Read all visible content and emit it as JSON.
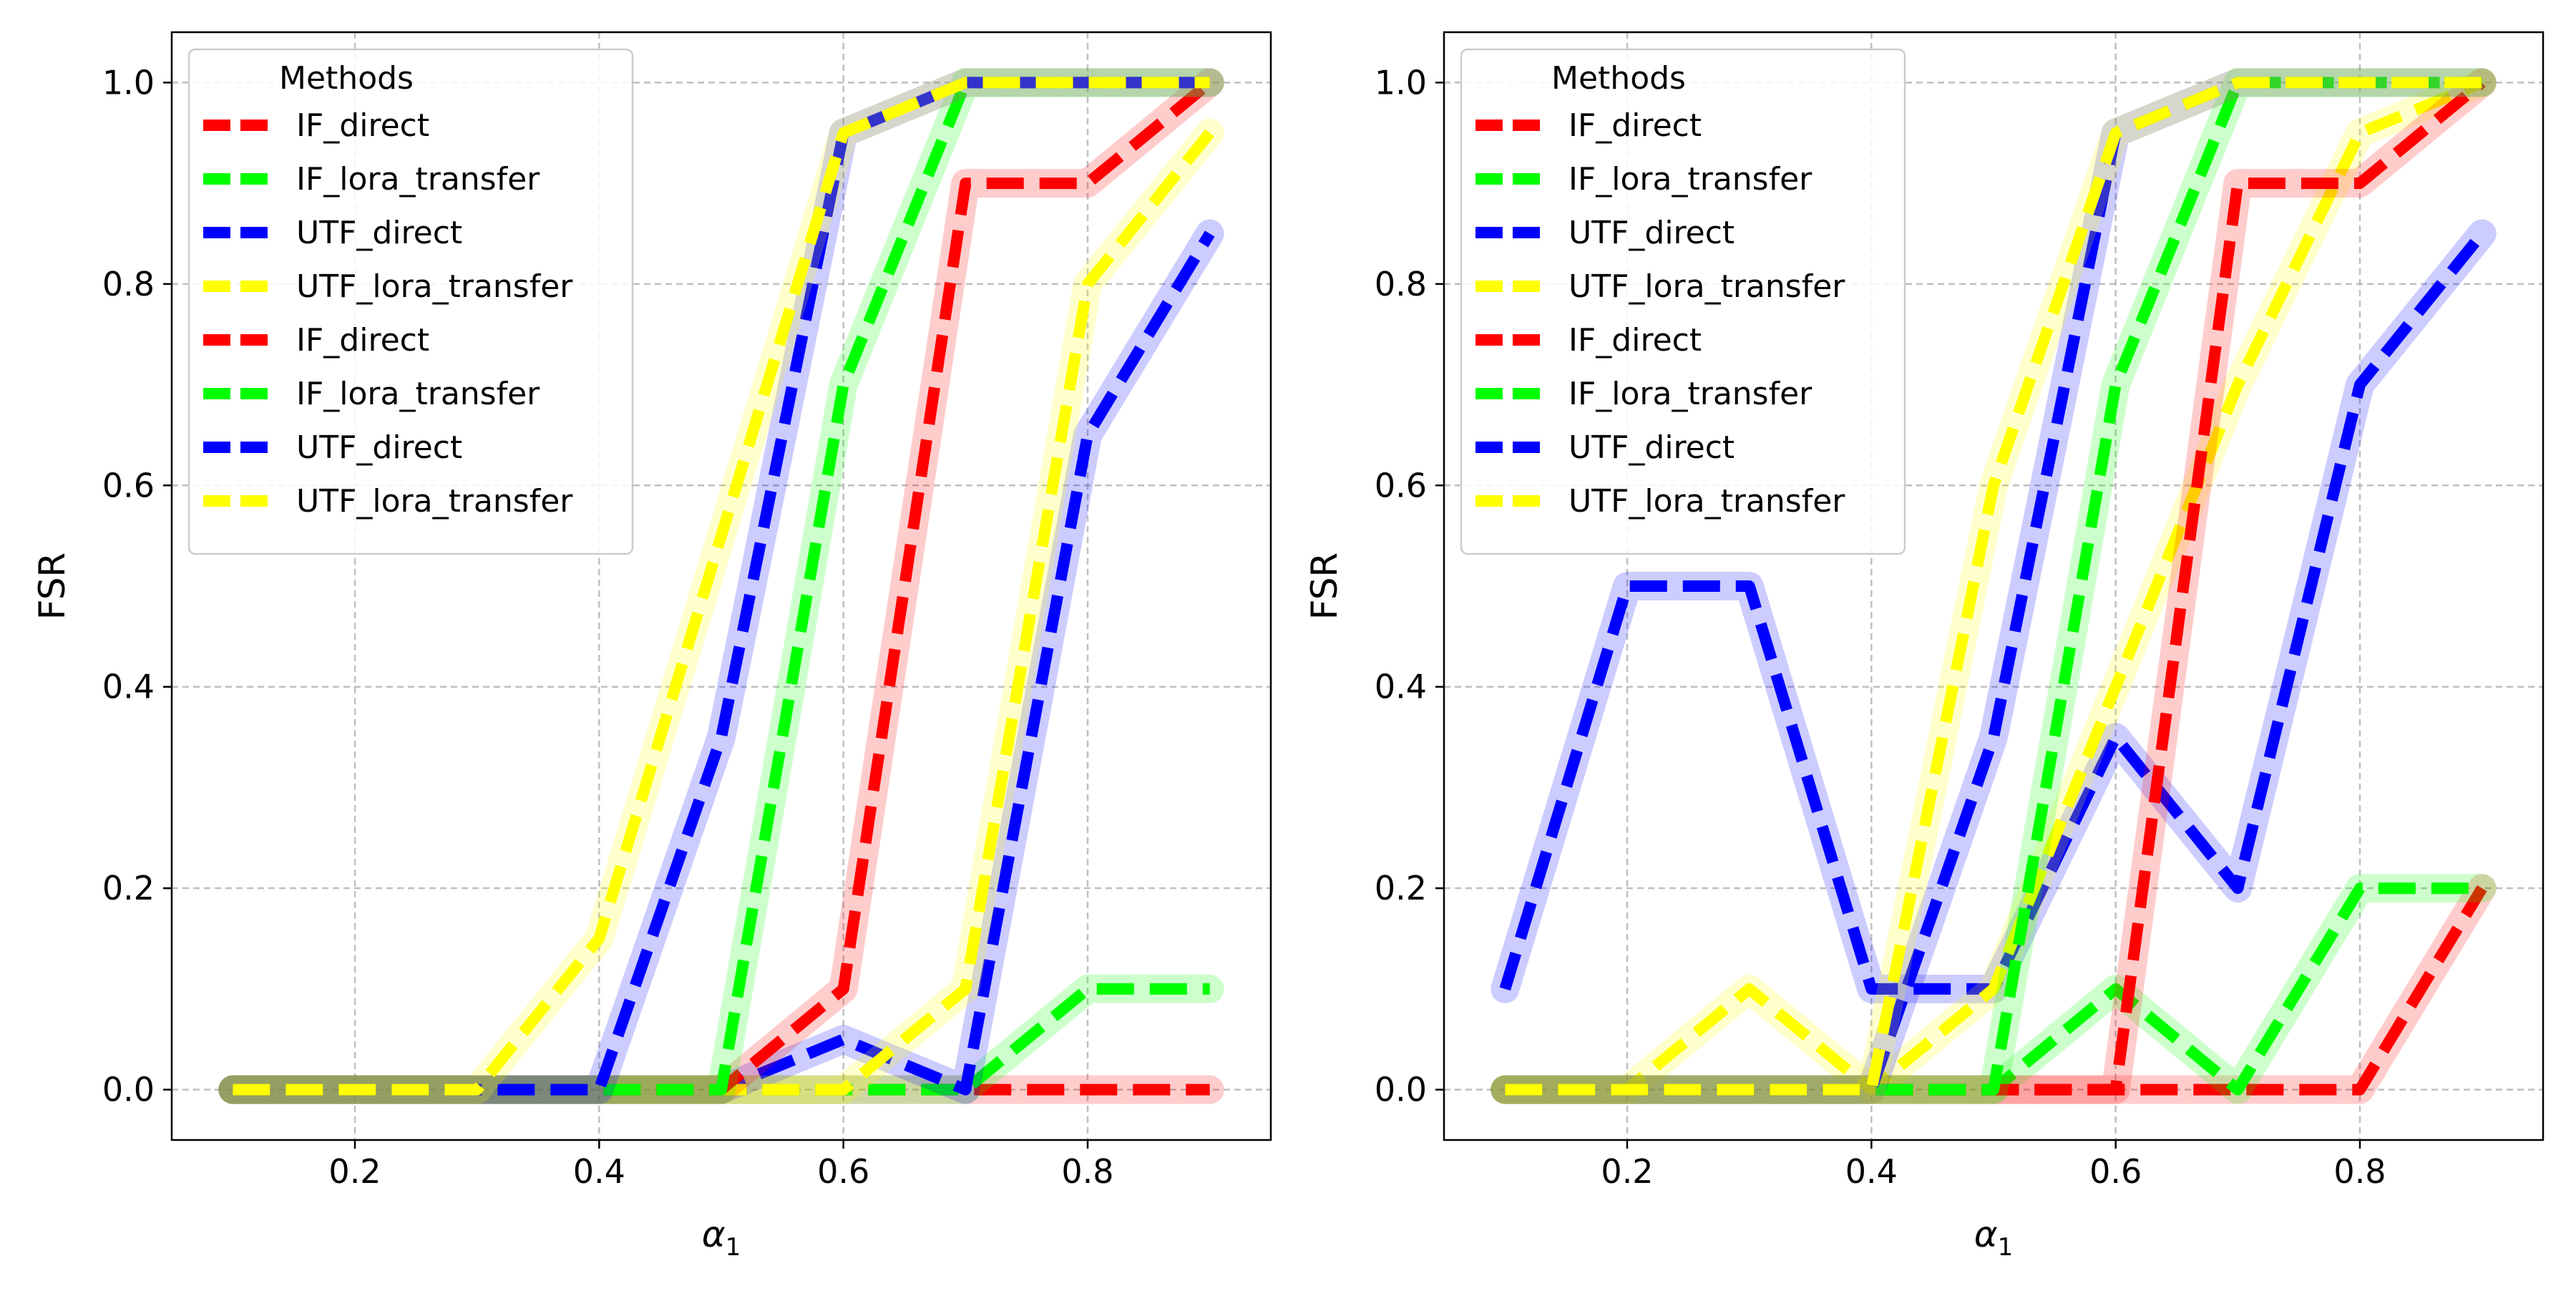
{
  "chart_data": [
    {
      "type": "line",
      "title": "",
      "xlabel": "α",
      "xlabel_sub": "1",
      "ylabel": "FSR",
      "xlim": [
        0.05,
        0.95
      ],
      "ylim": [
        -0.05,
        1.05
      ],
      "xticks": [
        0.2,
        0.4,
        0.6,
        0.8
      ],
      "xtick_labels": [
        "0.2",
        "0.4",
        "0.6",
        "0.8"
      ],
      "yticks": [
        0.0,
        0.2,
        0.4,
        0.6,
        0.8,
        1.0
      ],
      "ytick_labels": [
        "0.0",
        "0.2",
        "0.4",
        "0.6",
        "0.8",
        "1.0"
      ],
      "grid": true,
      "legend": {
        "title": "Methods",
        "placement": "top-left",
        "entries": [
          {
            "name": "IF_direct",
            "color": "#ff0000"
          },
          {
            "name": "IF_lora_transfer",
            "color": "#00ff00"
          },
          {
            "name": "UTF_direct",
            "color": "#0000ff"
          },
          {
            "name": "UTF_lora_transfer",
            "color": "#ffff00"
          },
          {
            "name": "IF_direct",
            "color": "#ff0000"
          },
          {
            "name": "IF_lora_transfer",
            "color": "#00ff00"
          },
          {
            "name": "UTF_direct",
            "color": "#0000ff"
          },
          {
            "name": "UTF_lora_transfer",
            "color": "#ffff00"
          }
        ]
      },
      "x": [
        0.1,
        0.2,
        0.3,
        0.4,
        0.5,
        0.6,
        0.7,
        0.8,
        0.9
      ],
      "series": [
        {
          "name": "IF_direct",
          "color": "#ff0000",
          "values": [
            0,
            0,
            0,
            0,
            0,
            0,
            0,
            0,
            0
          ]
        },
        {
          "name": "IF_lora_transfer",
          "color": "#00ff00",
          "values": [
            0,
            0,
            0,
            0,
            0,
            0,
            0,
            0.1,
            0.1
          ]
        },
        {
          "name": "UTF_direct",
          "color": "#0000ff",
          "values": [
            0,
            0,
            0,
            0,
            0,
            0.05,
            0,
            0.65,
            0.85
          ]
        },
        {
          "name": "UTF_lora_transfer",
          "color": "#ffff00",
          "values": [
            0,
            0,
            0,
            0,
            0,
            0,
            0.1,
            0.8,
            0.95
          ]
        },
        {
          "name": "IF_direct",
          "color": "#ff0000",
          "values": [
            0,
            0,
            0,
            0,
            0,
            0.1,
            0.9,
            0.9,
            1.0
          ]
        },
        {
          "name": "IF_lora_transfer",
          "color": "#00ff00",
          "values": [
            0,
            0,
            0,
            0,
            0,
            0.7,
            1.0,
            1.0,
            1.0
          ]
        },
        {
          "name": "UTF_direct",
          "color": "#0000ff",
          "values": [
            0,
            0,
            0,
            0,
            0.35,
            0.95,
            1.0,
            1.0,
            1.0
          ]
        },
        {
          "name": "UTF_lora_transfer",
          "color": "#ffff00",
          "values": [
            0,
            0,
            0,
            0.15,
            0.55,
            0.95,
            1.0,
            1.0,
            1.0
          ]
        }
      ]
    },
    {
      "type": "line",
      "title": "",
      "xlabel": "α",
      "xlabel_sub": "1",
      "ylabel": "FSR",
      "xlim": [
        0.05,
        0.95
      ],
      "ylim": [
        -0.05,
        1.05
      ],
      "xticks": [
        0.2,
        0.4,
        0.6,
        0.8
      ],
      "xtick_labels": [
        "0.2",
        "0.4",
        "0.6",
        "0.8"
      ],
      "yticks": [
        0.0,
        0.2,
        0.4,
        0.6,
        0.8,
        1.0
      ],
      "ytick_labels": [
        "0.0",
        "0.2",
        "0.4",
        "0.6",
        "0.8",
        "1.0"
      ],
      "grid": true,
      "legend": {
        "title": "Methods",
        "placement": "top-left",
        "entries": [
          {
            "name": "IF_direct",
            "color": "#ff0000"
          },
          {
            "name": "IF_lora_transfer",
            "color": "#00ff00"
          },
          {
            "name": "UTF_direct",
            "color": "#0000ff"
          },
          {
            "name": "UTF_lora_transfer",
            "color": "#ffff00"
          },
          {
            "name": "IF_direct",
            "color": "#ff0000"
          },
          {
            "name": "IF_lora_transfer",
            "color": "#00ff00"
          },
          {
            "name": "UTF_direct",
            "color": "#0000ff"
          },
          {
            "name": "UTF_lora_transfer",
            "color": "#ffff00"
          }
        ]
      },
      "x": [
        0.1,
        0.2,
        0.3,
        0.4,
        0.5,
        0.6,
        0.7,
        0.8,
        0.9
      ],
      "series": [
        {
          "name": "IF_direct",
          "color": "#ff0000",
          "values": [
            0,
            0,
            0,
            0,
            0,
            0,
            0,
            0,
            0.2
          ]
        },
        {
          "name": "IF_lora_transfer",
          "color": "#00ff00",
          "values": [
            0,
            0,
            0,
            0,
            0,
            0.1,
            0,
            0.2,
            0.2
          ]
        },
        {
          "name": "UTF_direct",
          "color": "#0000ff",
          "values": [
            0.1,
            0.5,
            0.5,
            0.1,
            0.1,
            0.35,
            0.2,
            0.7,
            0.85
          ]
        },
        {
          "name": "UTF_lora_transfer",
          "color": "#ffff00",
          "values": [
            0,
            0,
            0.1,
            0,
            0.1,
            0.4,
            0.7,
            0.95,
            1.0
          ]
        },
        {
          "name": "IF_direct",
          "color": "#ff0000",
          "values": [
            0,
            0,
            0,
            0,
            0,
            0,
            0.9,
            0.9,
            1.0
          ]
        },
        {
          "name": "IF_lora_transfer",
          "color": "#00ff00",
          "values": [
            0,
            0,
            0,
            0,
            0,
            0.7,
            1.0,
            1.0,
            1.0
          ]
        },
        {
          "name": "UTF_direct",
          "color": "#0000ff",
          "values": [
            0,
            0,
            0,
            0,
            0.35,
            0.95,
            1.0,
            1.0,
            1.0
          ]
        },
        {
          "name": "UTF_lora_transfer",
          "color": "#ffff00",
          "values": [
            0,
            0,
            0,
            0,
            0.6,
            0.95,
            1.0,
            1.0,
            1.0
          ]
        }
      ]
    }
  ]
}
